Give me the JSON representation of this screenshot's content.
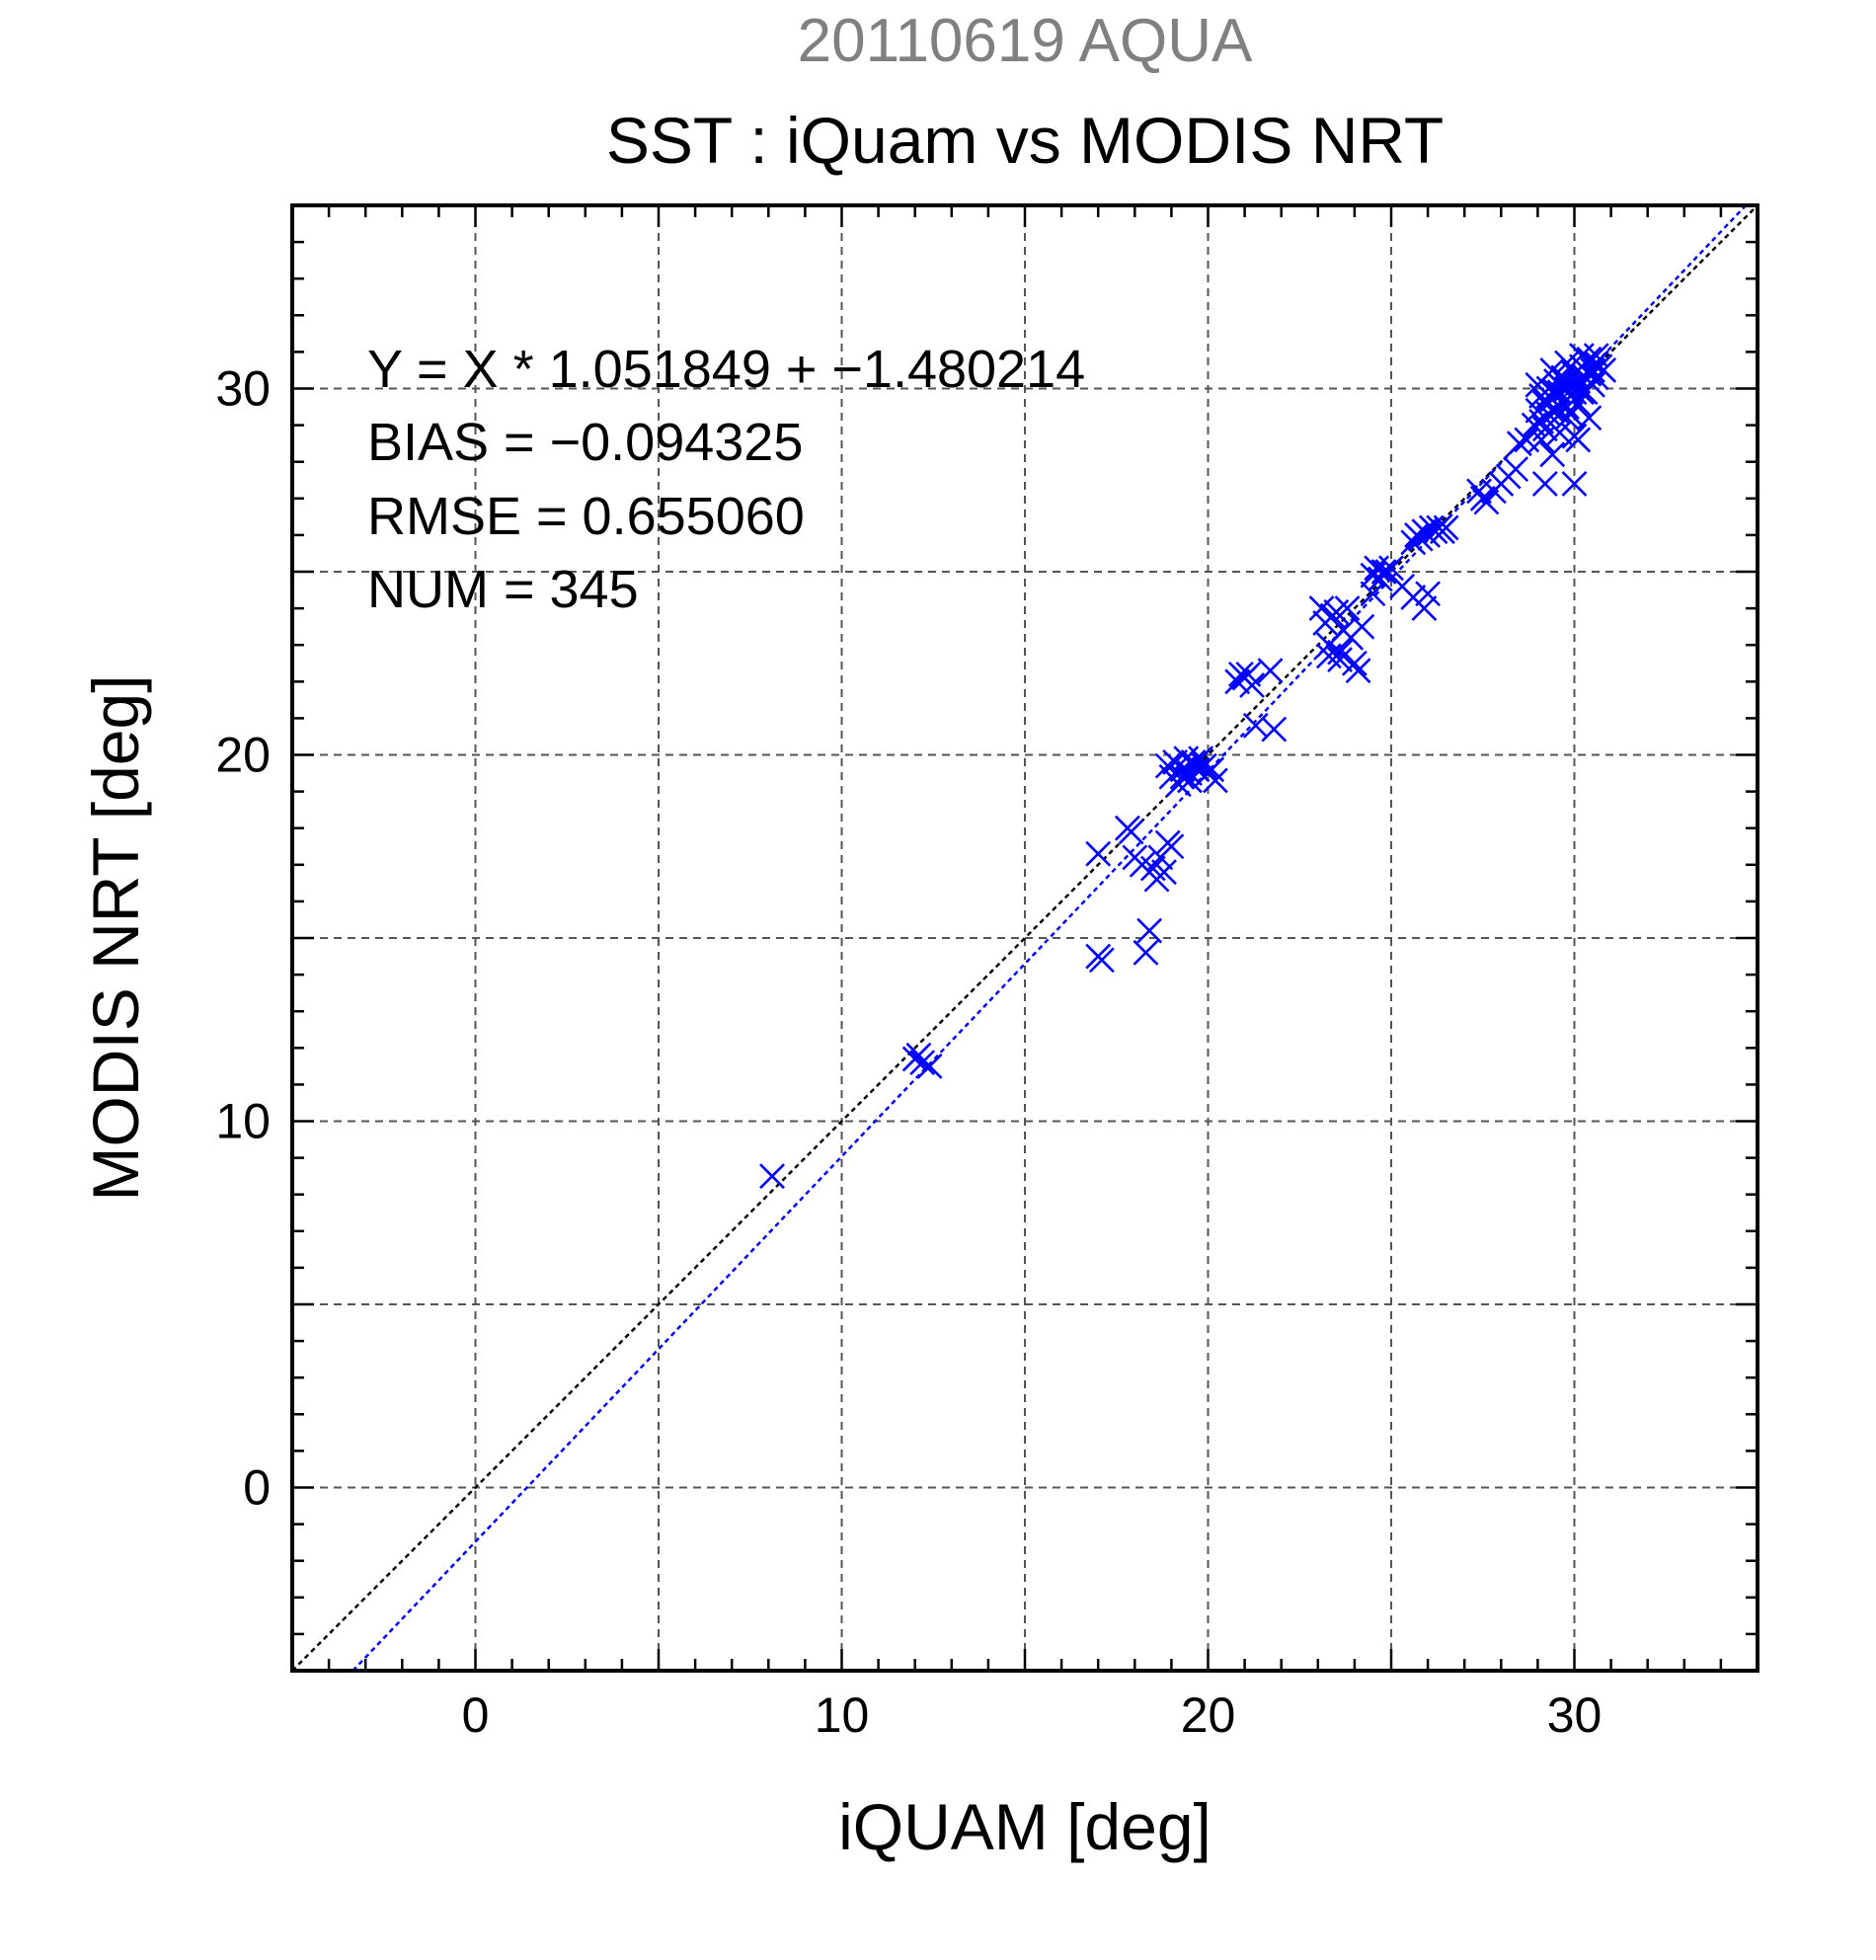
{
  "chart_data": {
    "type": "scatter",
    "suptitle": "20110619 AQUA",
    "title": "SST : iQuam vs MODIS NRT",
    "xlabel": "iQUAM [deg]",
    "ylabel": "MODIS NRT [deg]",
    "xlim": [
      -5,
      35
    ],
    "ylim": [
      -5,
      35
    ],
    "xticks": [
      0,
      10,
      20,
      30
    ],
    "yticks": [
      0,
      10,
      20,
      30
    ],
    "xtick_labels": [
      "0",
      "10",
      "20",
      "30"
    ],
    "ytick_labels": [
      "0",
      "10",
      "20",
      "30"
    ],
    "grid_step": 5,
    "minor_tick_step": 1,
    "grid": true,
    "marker": "x",
    "series_color": "#0000ff",
    "reference_line": {
      "slope": 1,
      "intercept": 0,
      "color": "#000000",
      "style": "dotted"
    },
    "fit_line": {
      "slope": 1.051849,
      "intercept": -1.480214,
      "color": "#0000ff",
      "style": "dotted"
    },
    "stats": [
      "Y = X * 1.051849 + −1.480214",
      "BIAS = −0.094325",
      "RMSE = 0.655060",
      "NUM = 345"
    ],
    "points": [
      [
        8.1,
        8.5
      ],
      [
        12.0,
        11.7
      ],
      [
        12.2,
        11.6
      ],
      [
        12.4,
        11.5
      ],
      [
        12.1,
        11.8
      ],
      [
        17.0,
        17.3
      ],
      [
        17.0,
        14.5
      ],
      [
        17.1,
        14.4
      ],
      [
        17.8,
        18.0
      ],
      [
        17.9,
        17.9
      ],
      [
        18.0,
        17.2
      ],
      [
        18.2,
        17.0
      ],
      [
        18.3,
        14.6
      ],
      [
        18.4,
        15.2
      ],
      [
        18.5,
        16.9
      ],
      [
        18.6,
        16.6
      ],
      [
        18.7,
        17.2
      ],
      [
        18.8,
        16.8
      ],
      [
        18.9,
        17.6
      ],
      [
        19.0,
        17.5
      ],
      [
        18.9,
        19.7
      ],
      [
        19.0,
        19.4
      ],
      [
        19.1,
        19.8
      ],
      [
        19.2,
        19.2
      ],
      [
        19.3,
        19.6
      ],
      [
        19.4,
        19.9
      ],
      [
        19.5,
        19.5
      ],
      [
        19.6,
        19.8
      ],
      [
        19.7,
        19.6
      ],
      [
        19.8,
        19.9
      ],
      [
        19.9,
        19.7
      ],
      [
        20.0,
        19.5
      ],
      [
        20.1,
        19.6
      ],
      [
        20.2,
        19.3
      ],
      [
        19.5,
        19.3
      ],
      [
        19.3,
        19.4
      ],
      [
        20.8,
        22.0
      ],
      [
        20.9,
        22.2
      ],
      [
        21.0,
        22.1
      ],
      [
        21.1,
        22.2
      ],
      [
        21.2,
        21.9
      ],
      [
        21.3,
        20.8
      ],
      [
        21.7,
        22.3
      ],
      [
        21.8,
        20.7
      ],
      [
        23.1,
        24.0
      ],
      [
        23.2,
        23.6
      ],
      [
        23.3,
        23.0
      ],
      [
        23.4,
        23.8
      ],
      [
        23.5,
        23.9
      ],
      [
        23.6,
        22.8
      ],
      [
        23.7,
        23.4
      ],
      [
        23.8,
        24.0
      ],
      [
        23.9,
        23.2
      ],
      [
        24.0,
        22.5
      ],
      [
        24.1,
        22.3
      ],
      [
        23.3,
        22.7
      ],
      [
        23.6,
        22.6
      ],
      [
        24.2,
        23.5
      ],
      [
        24.5,
        24.9
      ],
      [
        24.6,
        25.1
      ],
      [
        24.7,
        24.8
      ],
      [
        24.8,
        25.0
      ],
      [
        24.9,
        25.0
      ],
      [
        24.5,
        24.4
      ],
      [
        25.0,
        25.1
      ],
      [
        25.3,
        24.6
      ],
      [
        25.6,
        24.3
      ],
      [
        25.9,
        24.0
      ],
      [
        26.0,
        24.4
      ],
      [
        25.6,
        25.8
      ],
      [
        25.7,
        26.0
      ],
      [
        25.8,
        25.9
      ],
      [
        25.9,
        26.1
      ],
      [
        26.0,
        26.0
      ],
      [
        26.1,
        26.2
      ],
      [
        26.2,
        26.1
      ],
      [
        26.3,
        26.2
      ],
      [
        26.4,
        26.1
      ],
      [
        26.5,
        26.2
      ],
      [
        27.4,
        27.2
      ],
      [
        27.5,
        27.0
      ],
      [
        27.6,
        26.9
      ],
      [
        27.8,
        27.2
      ],
      [
        28.0,
        27.4
      ],
      [
        28.2,
        27.6
      ],
      [
        28.4,
        27.8
      ],
      [
        28.5,
        28.5
      ],
      [
        28.7,
        28.6
      ],
      [
        29.2,
        27.4
      ],
      [
        30.0,
        27.4
      ],
      [
        29.4,
        28.2
      ],
      [
        29.0,
        29.4
      ],
      [
        29.1,
        29.8
      ],
      [
        29.2,
        29.6
      ],
      [
        29.3,
        30.0
      ],
      [
        29.4,
        29.7
      ],
      [
        29.5,
        30.2
      ],
      [
        29.6,
        29.9
      ],
      [
        29.7,
        30.3
      ],
      [
        29.8,
        30.0
      ],
      [
        29.9,
        29.8
      ],
      [
        30.0,
        30.4
      ],
      [
        30.1,
        30.2
      ],
      [
        30.2,
        30.6
      ],
      [
        30.3,
        30.3
      ],
      [
        30.4,
        30.8
      ],
      [
        30.5,
        30.5
      ],
      [
        30.6,
        30.7
      ],
      [
        30.7,
        30.6
      ],
      [
        29.1,
        29.1
      ],
      [
        29.3,
        29.3
      ],
      [
        29.5,
        29.4
      ],
      [
        29.7,
        29.6
      ],
      [
        29.9,
        29.3
      ],
      [
        30.1,
        29.6
      ],
      [
        30.3,
        29.9
      ],
      [
        30.5,
        30.1
      ],
      [
        29.2,
        28.9
      ],
      [
        29.6,
        28.8
      ],
      [
        30.0,
        28.7
      ],
      [
        30.4,
        29.2
      ],
      [
        29.0,
        30.1
      ],
      [
        29.4,
        30.5
      ],
      [
        29.8,
        30.7
      ],
      [
        30.2,
        30.9
      ],
      [
        30.6,
        30.9
      ],
      [
        29.5,
        29.9
      ],
      [
        29.7,
        30.0
      ],
      [
        29.9,
        30.1
      ],
      [
        30.1,
        30.0
      ],
      [
        29.8,
        29.5
      ],
      [
        30.0,
        29.9
      ],
      [
        29.3,
        29.8
      ],
      [
        29.6,
        30.1
      ],
      [
        30.2,
        29.9
      ],
      [
        29.4,
        29.4
      ],
      [
        30.4,
        30.4
      ],
      [
        29.8,
        29.2
      ],
      [
        30.8,
        30.5
      ],
      [
        30.6,
        30.3
      ],
      [
        29.1,
        28.6
      ],
      [
        28.9,
        29.0
      ],
      [
        30.1,
        28.6
      ]
    ]
  }
}
